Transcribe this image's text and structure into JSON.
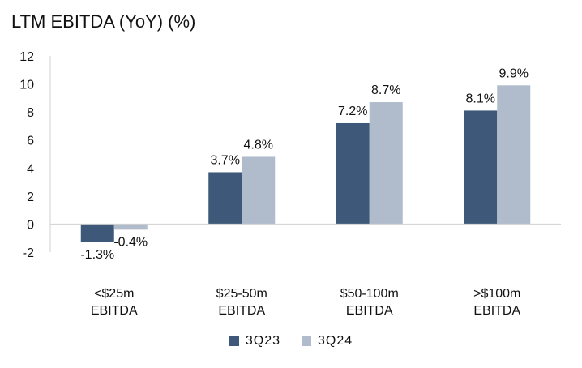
{
  "chart_data": {
    "type": "bar",
    "title": "LTM EBITDA (YoY) (%)",
    "categories": [
      [
        "<$25m",
        "EBITDA"
      ],
      [
        "$25-50m",
        "EBITDA"
      ],
      [
        "$50-100m",
        "EBITDA"
      ],
      [
        ">$100m",
        "EBITDA"
      ]
    ],
    "series": [
      {
        "name": "3Q23",
        "values": [
          -1.3,
          3.7,
          7.2,
          8.1
        ],
        "labels": [
          "-1.3%",
          "3.7%",
          "7.2%",
          "8.1%"
        ],
        "color": "#3d5878"
      },
      {
        "name": "3Q24",
        "values": [
          -0.4,
          4.8,
          8.7,
          9.9
        ],
        "labels": [
          "-0.4%",
          "4.8%",
          "8.7%",
          "9.9%"
        ],
        "color": "#b0bccb"
      }
    ],
    "ylim": [
      -2,
      12
    ],
    "yticks": [
      12,
      10,
      8,
      6,
      4,
      2,
      0,
      -2
    ],
    "grid": false,
    "legend": "bottom"
  }
}
